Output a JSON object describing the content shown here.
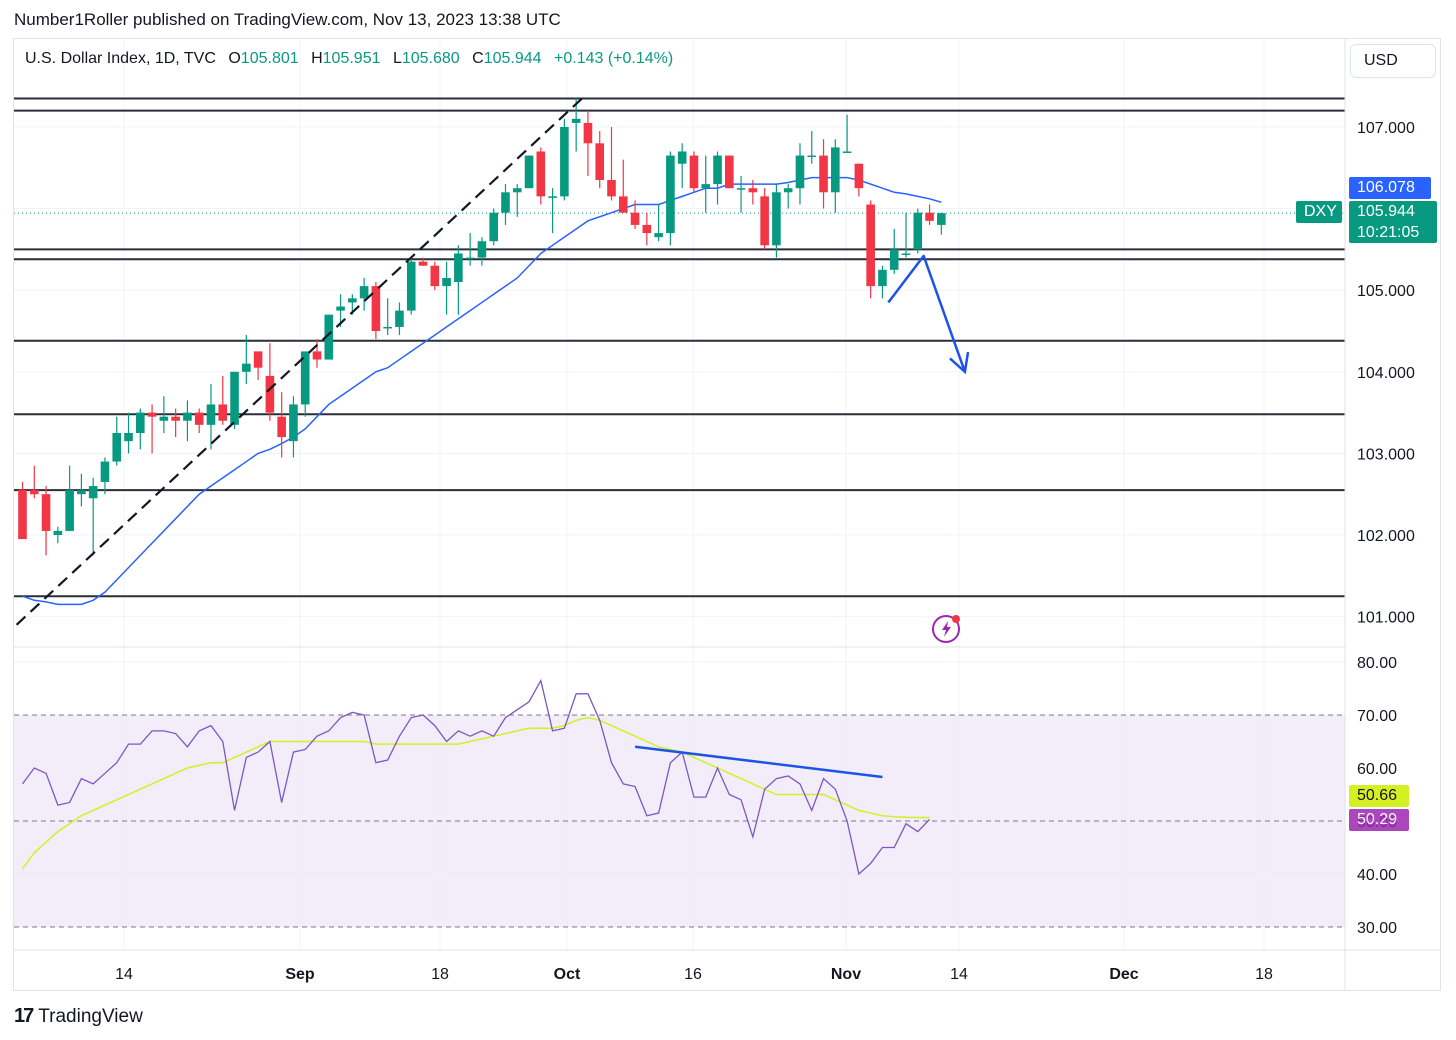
{
  "header": {
    "published_by": "Number1Roller published on TradingView.com, Nov 13, 2023 13:38 UTC"
  },
  "legend": {
    "symbol": "U.S. Dollar Index, 1D, TVC",
    "open_label": "O",
    "open": "105.801",
    "high_label": "H",
    "high": "105.951",
    "low_label": "L",
    "low": "105.680",
    "close_label": "C",
    "close": "105.944",
    "change": "+0.143 (+0.14%)"
  },
  "currency_button": "USD",
  "price_tags": {
    "ma_value": "106.078",
    "symbol_tag": "DXY",
    "last_price": "105.944",
    "countdown": "10:21:05"
  },
  "rsi_tags": {
    "rsi_ma_value": "50.66",
    "rsi_value": "50.29"
  },
  "footer": {
    "brand": "TradingView"
  },
  "colors": {
    "up": "#089981",
    "down": "#f23645",
    "ma": "#2962ff",
    "rsi": "#7e57c2",
    "rsi_ma": "#d4f024",
    "rsi_band": "#ede7f6",
    "drawing_blue": "#1e53e5",
    "hline": "#2a2e39",
    "grid": "#f0f3fa"
  },
  "chart_data": [
    {
      "type": "candlestick",
      "title": "U.S. Dollar Index, 1D, TVC",
      "y_axis_ticks": [
        "107.000",
        "106.000",
        "105.000",
        "104.000",
        "103.000",
        "102.000",
        "101.000"
      ],
      "ylim": [
        100.75,
        108.25
      ],
      "x_axis_ticks": [
        "14",
        "Sep",
        "18",
        "Oct",
        "16",
        "Nov",
        "14",
        "Dec",
        "18"
      ],
      "candles": [
        {
          "o": 102.55,
          "h": 102.65,
          "l": 101.95,
          "c": 101.95
        },
        {
          "o": 102.55,
          "h": 102.85,
          "l": 102.45,
          "c": 102.5
        },
        {
          "o": 102.5,
          "h": 102.6,
          "l": 101.75,
          "c": 102.05
        },
        {
          "o": 102.0,
          "h": 102.1,
          "l": 101.9,
          "c": 102.05
        },
        {
          "o": 102.05,
          "h": 102.85,
          "l": 102.05,
          "c": 102.55
        },
        {
          "o": 102.5,
          "h": 102.75,
          "l": 102.35,
          "c": 102.55
        },
        {
          "o": 102.45,
          "h": 102.7,
          "l": 101.75,
          "c": 102.6
        },
        {
          "o": 102.65,
          "h": 102.95,
          "l": 102.5,
          "c": 102.9
        },
        {
          "o": 102.9,
          "h": 103.45,
          "l": 102.85,
          "c": 103.25
        },
        {
          "o": 103.15,
          "h": 103.5,
          "l": 103.0,
          "c": 103.25
        },
        {
          "o": 103.25,
          "h": 103.55,
          "l": 103.05,
          "c": 103.5
        },
        {
          "o": 103.5,
          "h": 103.6,
          "l": 103.0,
          "c": 103.45
        },
        {
          "o": 103.4,
          "h": 103.7,
          "l": 103.25,
          "c": 103.45
        },
        {
          "o": 103.45,
          "h": 103.55,
          "l": 103.2,
          "c": 103.4
        },
        {
          "o": 103.4,
          "h": 103.65,
          "l": 103.15,
          "c": 103.5
        },
        {
          "o": 103.5,
          "h": 103.55,
          "l": 103.25,
          "c": 103.35
        },
        {
          "o": 103.35,
          "h": 103.85,
          "l": 103.05,
          "c": 103.6
        },
        {
          "o": 103.6,
          "h": 103.95,
          "l": 103.35,
          "c": 103.4
        },
        {
          "o": 103.35,
          "h": 104.0,
          "l": 103.3,
          "c": 104.0
        },
        {
          "o": 104.0,
          "h": 104.45,
          "l": 103.85,
          "c": 104.1
        },
        {
          "o": 104.25,
          "h": 104.25,
          "l": 103.9,
          "c": 104.05
        },
        {
          "o": 103.95,
          "h": 104.35,
          "l": 103.4,
          "c": 103.5
        },
        {
          "o": 103.45,
          "h": 103.75,
          "l": 102.95,
          "c": 103.2
        },
        {
          "o": 103.15,
          "h": 103.7,
          "l": 102.95,
          "c": 103.6
        },
        {
          "o": 103.6,
          "h": 104.25,
          "l": 103.45,
          "c": 104.25
        },
        {
          "o": 104.25,
          "h": 104.4,
          "l": 104.05,
          "c": 104.15
        },
        {
          "o": 104.15,
          "h": 104.7,
          "l": 104.15,
          "c": 104.7
        },
        {
          "o": 104.75,
          "h": 104.95,
          "l": 104.55,
          "c": 104.8
        },
        {
          "o": 104.85,
          "h": 104.95,
          "l": 104.7,
          "c": 104.9
        },
        {
          "o": 104.9,
          "h": 105.15,
          "l": 104.75,
          "c": 105.05
        },
        {
          "o": 105.05,
          "h": 105.1,
          "l": 104.4,
          "c": 104.5
        },
        {
          "o": 104.55,
          "h": 104.9,
          "l": 104.45,
          "c": 104.55
        },
        {
          "o": 104.55,
          "h": 104.85,
          "l": 104.45,
          "c": 104.75
        },
        {
          "o": 104.75,
          "h": 105.4,
          "l": 104.7,
          "c": 105.35
        },
        {
          "o": 105.35,
          "h": 105.4,
          "l": 105.3,
          "c": 105.3
        },
        {
          "o": 105.3,
          "h": 105.35,
          "l": 105.0,
          "c": 105.05
        },
        {
          "o": 105.05,
          "h": 105.35,
          "l": 104.7,
          "c": 105.15
        },
        {
          "o": 105.1,
          "h": 105.55,
          "l": 104.7,
          "c": 105.45
        },
        {
          "o": 105.4,
          "h": 105.7,
          "l": 105.3,
          "c": 105.4
        },
        {
          "o": 105.4,
          "h": 105.65,
          "l": 105.3,
          "c": 105.6
        },
        {
          "o": 105.6,
          "h": 106.0,
          "l": 105.55,
          "c": 105.95
        },
        {
          "o": 105.95,
          "h": 106.3,
          "l": 105.8,
          "c": 106.2
        },
        {
          "o": 106.2,
          "h": 106.3,
          "l": 105.9,
          "c": 106.25
        },
        {
          "o": 106.25,
          "h": 106.65,
          "l": 106.25,
          "c": 106.65
        },
        {
          "o": 106.7,
          "h": 106.75,
          "l": 106.05,
          "c": 106.15
        },
        {
          "o": 106.15,
          "h": 106.25,
          "l": 105.7,
          "c": 106.15
        },
        {
          "o": 106.15,
          "h": 107.1,
          "l": 106.1,
          "c": 107.0
        },
        {
          "o": 107.05,
          "h": 107.35,
          "l": 106.7,
          "c": 107.1
        },
        {
          "o": 107.05,
          "h": 107.2,
          "l": 106.4,
          "c": 106.8
        },
        {
          "o": 106.8,
          "h": 106.95,
          "l": 106.25,
          "c": 106.35
        },
        {
          "o": 106.35,
          "h": 107.0,
          "l": 106.1,
          "c": 106.15
        },
        {
          "o": 106.15,
          "h": 106.6,
          "l": 105.95,
          "c": 105.95
        },
        {
          "o": 105.95,
          "h": 106.1,
          "l": 105.75,
          "c": 105.8
        },
        {
          "o": 105.8,
          "h": 105.95,
          "l": 105.55,
          "c": 105.7
        },
        {
          "o": 105.65,
          "h": 106.05,
          "l": 105.6,
          "c": 105.7
        },
        {
          "o": 105.7,
          "h": 106.7,
          "l": 105.55,
          "c": 106.65
        },
        {
          "o": 106.55,
          "h": 106.8,
          "l": 106.25,
          "c": 106.7
        },
        {
          "o": 106.65,
          "h": 106.7,
          "l": 106.2,
          "c": 106.25
        },
        {
          "o": 106.25,
          "h": 106.65,
          "l": 105.95,
          "c": 106.3
        },
        {
          "o": 106.3,
          "h": 106.7,
          "l": 106.05,
          "c": 106.65
        },
        {
          "o": 106.65,
          "h": 106.65,
          "l": 106.25,
          "c": 106.25
        },
        {
          "o": 106.25,
          "h": 106.4,
          "l": 105.95,
          "c": 106.25
        },
        {
          "o": 106.25,
          "h": 106.35,
          "l": 106.05,
          "c": 106.2
        },
        {
          "o": 106.15,
          "h": 106.25,
          "l": 105.5,
          "c": 105.55
        },
        {
          "o": 105.55,
          "h": 106.3,
          "l": 105.4,
          "c": 106.2
        },
        {
          "o": 106.2,
          "h": 106.3,
          "l": 106.0,
          "c": 106.25
        },
        {
          "o": 106.25,
          "h": 106.8,
          "l": 106.05,
          "c": 106.65
        },
        {
          "o": 106.65,
          "h": 106.95,
          "l": 106.55,
          "c": 106.65
        },
        {
          "o": 106.65,
          "h": 106.85,
          "l": 106.0,
          "c": 106.2
        },
        {
          "o": 106.2,
          "h": 106.85,
          "l": 105.95,
          "c": 106.75
        },
        {
          "o": 106.7,
          "h": 107.15,
          "l": 106.7,
          "c": 106.7
        },
        {
          "o": 106.55,
          "h": 106.55,
          "l": 106.15,
          "c": 106.25
        },
        {
          "o": 106.05,
          "h": 106.1,
          "l": 104.9,
          "c": 105.05
        },
        {
          "o": 105.05,
          "h": 105.3,
          "l": 104.9,
          "c": 105.25
        },
        {
          "o": 105.25,
          "h": 105.75,
          "l": 105.2,
          "c": 105.5
        },
        {
          "o": 105.45,
          "h": 105.95,
          "l": 105.4,
          "c": 105.45
        },
        {
          "o": 105.5,
          "h": 106.0,
          "l": 105.45,
          "c": 105.95
        },
        {
          "o": 105.95,
          "h": 106.05,
          "l": 105.8,
          "c": 105.85
        },
        {
          "o": 105.8,
          "h": 105.95,
          "l": 105.68,
          "c": 105.944
        }
      ],
      "moving_average": [
        101.25,
        101.2,
        101.18,
        101.15,
        101.15,
        101.15,
        101.2,
        101.3,
        101.45,
        101.6,
        101.75,
        101.9,
        102.05,
        102.2,
        102.35,
        102.5,
        102.6,
        102.7,
        102.8,
        102.9,
        103.0,
        103.05,
        103.12,
        103.2,
        103.3,
        103.45,
        103.6,
        103.7,
        103.8,
        103.9,
        104.0,
        104.05,
        104.15,
        104.25,
        104.35,
        104.45,
        104.55,
        104.65,
        104.75,
        104.85,
        104.95,
        105.05,
        105.15,
        105.3,
        105.45,
        105.55,
        105.65,
        105.75,
        105.85,
        105.9,
        105.95,
        106.0,
        106.05,
        106.05,
        106.05,
        106.1,
        106.15,
        106.2,
        106.25,
        106.25,
        106.3,
        106.3,
        106.3,
        106.3,
        106.3,
        106.32,
        106.35,
        106.38,
        106.38,
        106.38,
        106.38,
        106.35,
        106.3,
        106.25,
        106.2,
        106.18,
        106.15,
        106.12,
        106.078
      ],
      "horizontal_levels": [
        107.35,
        107.2,
        105.5,
        105.38,
        104.38,
        103.48,
        102.55,
        101.25
      ],
      "drawings": [
        {
          "type": "dashed-trendline",
          "from": {
            "bar": -0.5,
            "price": 100.9
          },
          "to": {
            "bar": 47.5,
            "price": 107.35
          }
        },
        {
          "type": "arrow",
          "points": [
            {
              "bar": 73.5,
              "price": 104.85
            },
            {
              "bar": 76.5,
              "price": 105.42
            },
            {
              "bar": 80,
              "price": 104.0
            }
          ]
        }
      ]
    },
    {
      "type": "line",
      "title": "RSI",
      "y_axis_ticks": [
        "80.00",
        "70.00",
        "60.00",
        "50.00",
        "40.00",
        "30.00"
      ],
      "ylim": [
        27,
        81
      ],
      "bands": {
        "upper": 70,
        "middle": 50,
        "lower": 30
      },
      "rsi": [
        57,
        60,
        59,
        53,
        53.5,
        58,
        57,
        59,
        61,
        64.5,
        64.5,
        67,
        67,
        66.5,
        64,
        67,
        68,
        65,
        52,
        62,
        63,
        65,
        53.5,
        63,
        63.5,
        66,
        67,
        69.5,
        70.5,
        70,
        61,
        61.5,
        66,
        69.5,
        70,
        68,
        65,
        67,
        66,
        67,
        66,
        69.5,
        71,
        72.5,
        76.5,
        67,
        67.5,
        74,
        74,
        69,
        61,
        57,
        56.5,
        51,
        51.5,
        61,
        63,
        54.5,
        54.5,
        60,
        55,
        54,
        47,
        56,
        58,
        58.5,
        57,
        52,
        58,
        56,
        50,
        40,
        42,
        45,
        45,
        49.5,
        48,
        50.29
      ],
      "rsi_ma": [
        41,
        44,
        46,
        48,
        49.5,
        51,
        52,
        53,
        54,
        55,
        56,
        57,
        58,
        59,
        60,
        60.5,
        61,
        61,
        62,
        63,
        64,
        65,
        65,
        65,
        65,
        65,
        65,
        65,
        65,
        65,
        64.5,
        64.5,
        64.5,
        64.5,
        64.5,
        64.5,
        64.5,
        64.5,
        65,
        65.5,
        66,
        66.5,
        67,
        67.5,
        67.5,
        67.5,
        68,
        69,
        69.5,
        69,
        68,
        67,
        66,
        65,
        64,
        63.5,
        63,
        62,
        61,
        60,
        59,
        58,
        57,
        56,
        55,
        55,
        55,
        55,
        55,
        54,
        53,
        52,
        51.5,
        51,
        50.8,
        50.7,
        50.66,
        50.66
      ],
      "drawings": [
        {
          "type": "trendline",
          "from": {
            "bar": 52,
            "value": 64
          },
          "to": {
            "bar": 73,
            "value": 58.3
          }
        }
      ]
    }
  ]
}
